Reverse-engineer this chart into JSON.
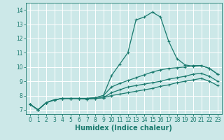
{
  "title": "",
  "xlabel": "Humidex (Indice chaleur)",
  "ylabel": "",
  "bg_color": "#cce8e8",
  "line_color": "#1a7a6e",
  "grid_color": "#ffffff",
  "xlim": [
    -0.5,
    23.5
  ],
  "ylim": [
    6.7,
    14.5
  ],
  "xticks": [
    0,
    1,
    2,
    3,
    4,
    5,
    6,
    7,
    8,
    9,
    10,
    11,
    12,
    13,
    14,
    15,
    16,
    17,
    18,
    19,
    20,
    21,
    22,
    23
  ],
  "yticks": [
    7,
    8,
    9,
    10,
    11,
    12,
    13,
    14
  ],
  "line1_x": [
    0,
    1,
    2,
    3,
    4,
    5,
    6,
    7,
    8,
    9,
    10,
    11,
    12,
    13,
    14,
    15,
    16,
    17,
    18,
    19,
    20,
    21,
    22,
    23
  ],
  "line1_y": [
    7.4,
    7.0,
    7.5,
    7.7,
    7.8,
    7.8,
    7.8,
    7.8,
    7.85,
    8.0,
    9.4,
    10.2,
    11.0,
    13.3,
    13.5,
    13.85,
    13.5,
    11.8,
    10.6,
    10.15,
    10.05,
    10.1,
    9.9,
    9.5
  ],
  "line2_x": [
    0,
    1,
    2,
    3,
    4,
    5,
    6,
    7,
    8,
    9,
    10,
    11,
    12,
    13,
    14,
    15,
    16,
    17,
    18,
    19,
    20,
    21,
    22,
    23
  ],
  "line2_y": [
    7.4,
    7.0,
    7.5,
    7.7,
    7.8,
    7.8,
    7.8,
    7.8,
    7.85,
    8.0,
    8.6,
    8.85,
    9.05,
    9.25,
    9.45,
    9.65,
    9.8,
    9.9,
    9.95,
    10.0,
    10.1,
    10.1,
    9.9,
    9.5
  ],
  "line3_x": [
    0,
    1,
    2,
    3,
    4,
    5,
    6,
    7,
    8,
    9,
    10,
    11,
    12,
    13,
    14,
    15,
    16,
    17,
    18,
    19,
    20,
    21,
    22,
    23
  ],
  "line3_y": [
    7.4,
    7.0,
    7.5,
    7.7,
    7.8,
    7.8,
    7.8,
    7.75,
    7.8,
    7.85,
    8.2,
    8.4,
    8.6,
    8.7,
    8.8,
    8.9,
    9.0,
    9.15,
    9.25,
    9.35,
    9.5,
    9.55,
    9.35,
    9.0
  ],
  "line4_x": [
    0,
    1,
    2,
    3,
    4,
    5,
    6,
    7,
    8,
    9,
    10,
    11,
    12,
    13,
    14,
    15,
    16,
    17,
    18,
    19,
    20,
    21,
    22,
    23
  ],
  "line4_y": [
    7.4,
    7.0,
    7.5,
    7.7,
    7.8,
    7.8,
    7.8,
    7.75,
    7.8,
    7.85,
    8.0,
    8.1,
    8.2,
    8.3,
    8.4,
    8.5,
    8.65,
    8.75,
    8.9,
    9.0,
    9.1,
    9.2,
    9.0,
    8.7
  ],
  "marker": "+",
  "markersize": 3,
  "linewidth": 0.9,
  "tick_fontsize": 5.5,
  "xlabel_fontsize": 7
}
